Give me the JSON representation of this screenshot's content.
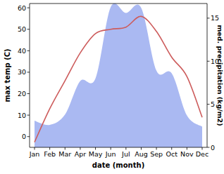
{
  "chart_data": {
    "type": "line",
    "x_label": "date (month)",
    "y_label": "max temp (C)",
    "y2_label": "med. precipitation (kg/m2)",
    "categories": [
      "Jan",
      "Feb",
      "Mar",
      "Apr",
      "May",
      "Jun",
      "Jul",
      "Aug",
      "Sep",
      "Oct",
      "Nov",
      "Dec"
    ],
    "series": [
      {
        "name": "max temp (C)",
        "type": "line",
        "color": "#cd5c5c",
        "values": [
          -2.6,
          13,
          26,
          39,
          48,
          50,
          51,
          56,
          49,
          37,
          28,
          9
        ]
      },
      {
        "name": "med. precipitation (kg/m2)",
        "type": "area",
        "axis": "y2",
        "color": "#aab9f2",
        "values": [
          3.1,
          2.6,
          3.8,
          7.7,
          8.0,
          16.3,
          15.6,
          16.2,
          8.9,
          8.6,
          3.7,
          2.4
        ]
      }
    ],
    "ylim": [
      -5,
      62
    ],
    "yticks": [
      0,
      10,
      20,
      30,
      40,
      50,
      60
    ],
    "y2lim": [
      0,
      16.7
    ],
    "y2ticks": [
      0,
      5,
      10,
      15
    ]
  }
}
